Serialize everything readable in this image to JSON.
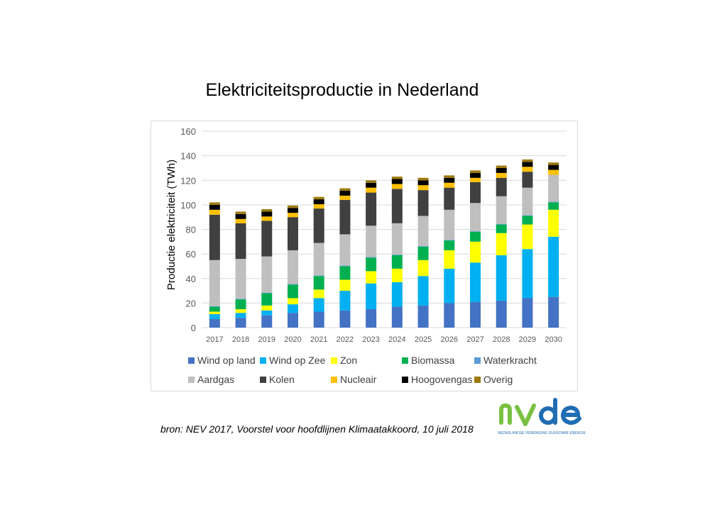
{
  "title": "Elektriciteitsproductie in Nederland",
  "source": "bron: NEV 2017, Voorstel voor hoofdlijnen Klimaatakkoord, 10 juli 2018",
  "logo": {
    "wordmark": "nvde",
    "tagline": "NEDERLANDSE VERENIGING DUURZAME ENERGIE"
  },
  "chart_data": {
    "type": "bar",
    "stacked": true,
    "title": "Elektriciteitsproductie in Nederland",
    "xlabel": "",
    "ylabel": "Productie elektriciteit (TWh)",
    "ylim": [
      0,
      160
    ],
    "yticks": [
      0,
      20,
      40,
      60,
      80,
      100,
      120,
      140,
      160
    ],
    "grid": true,
    "legend": "bottom",
    "categories": [
      "2017",
      "2018",
      "2019",
      "2020",
      "2021",
      "2022",
      "2023",
      "2024",
      "2025",
      "2026",
      "2027",
      "2028",
      "2029",
      "2030"
    ],
    "series": [
      {
        "name": "Wind op land",
        "color": "#4472c4",
        "values": [
          7,
          8,
          10,
          12,
          13,
          14,
          15,
          17,
          18,
          20,
          21,
          22,
          24,
          25
        ]
      },
      {
        "name": "Wind op Zee",
        "color": "#00b0f0",
        "values": [
          4,
          4,
          4,
          7,
          11,
          16,
          21,
          20,
          24,
          28,
          32,
          37,
          40,
          49
        ]
      },
      {
        "name": "Zon",
        "color": "#ffff00",
        "values": [
          2,
          3,
          4,
          5,
          7,
          9,
          10,
          11,
          13,
          15,
          17,
          18,
          20,
          22
        ]
      },
      {
        "name": "Biomassa",
        "color": "#00b050",
        "values": [
          4,
          8,
          10,
          11,
          11,
          11,
          11,
          11,
          11,
          8,
          8,
          7,
          7,
          6
        ]
      },
      {
        "name": "Waterkracht",
        "color": "#5b9bd5",
        "values": [
          0.5,
          0.5,
          0.5,
          0.5,
          0.5,
          0.5,
          0.5,
          0.5,
          0.5,
          0.5,
          0.5,
          0.5,
          0.5,
          0.5
        ]
      },
      {
        "name": "Aardgas",
        "color": "#bfbfbf",
        "values": [
          37.5,
          32.5,
          29.5,
          27.5,
          26.5,
          25.5,
          25.5,
          25.5,
          24.5,
          24.5,
          23,
          22.5,
          22.5,
          22
        ]
      },
      {
        "name": "Kolen",
        "color": "#404040",
        "values": [
          37,
          29,
          29,
          27,
          28,
          28,
          27,
          28,
          21,
          18,
          17,
          15,
          13,
          0
        ]
      },
      {
        "name": "Nucleair",
        "color": "#ffc000",
        "values": [
          4,
          3.5,
          3.5,
          3.5,
          3.5,
          3.5,
          4,
          4,
          4,
          4,
          3.5,
          4,
          4,
          4
        ]
      },
      {
        "name": "Hoogovengas",
        "color": "#000000",
        "values": [
          4,
          4,
          4,
          4,
          4,
          4,
          4,
          4,
          4,
          4,
          4,
          4,
          4,
          4
        ]
      },
      {
        "name": "Overig",
        "color": "#9c7a0f",
        "values": [
          2,
          2,
          2,
          2,
          2,
          2,
          2,
          2,
          2,
          2,
          2,
          2,
          2,
          2
        ]
      }
    ]
  }
}
